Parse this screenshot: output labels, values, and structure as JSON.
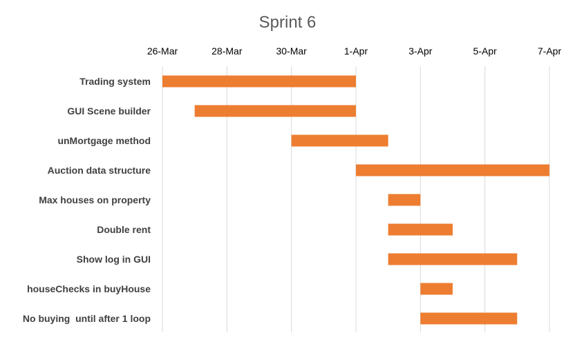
{
  "chart_data": {
    "type": "bar",
    "orientation": "horizontal-gantt",
    "title": "Sprint 6",
    "xlabel": "",
    "ylabel": "",
    "x_axis_position": "top",
    "grid": true,
    "legend": "none",
    "bar_color": "#ED7D31",
    "xlim": [
      "2020-03-26",
      "2020-04-07"
    ],
    "x_ticks": [
      {
        "date": "2020-03-26",
        "label": "26-Mar"
      },
      {
        "date": "2020-03-28",
        "label": "28-Mar"
      },
      {
        "date": "2020-03-30",
        "label": "30-Mar"
      },
      {
        "date": "2020-04-01",
        "label": "1-Apr"
      },
      {
        "date": "2020-04-03",
        "label": "3-Apr"
      },
      {
        "date": "2020-04-05",
        "label": "5-Apr"
      },
      {
        "date": "2020-04-07",
        "label": "7-Apr"
      }
    ],
    "tasks": [
      {
        "label": "Trading system",
        "start": "2020-03-26",
        "end": "2020-04-01"
      },
      {
        "label": "GUI Scene builder",
        "start": "2020-03-27",
        "end": "2020-04-01"
      },
      {
        "label": "unMortgage method",
        "start": "2020-03-30",
        "end": "2020-04-02"
      },
      {
        "label": "Auction data structure",
        "start": "2020-04-01",
        "end": "2020-04-07"
      },
      {
        "label": "Max houses on property",
        "start": "2020-04-02",
        "end": "2020-04-03"
      },
      {
        "label": "Double rent",
        "start": "2020-04-02",
        "end": "2020-04-04"
      },
      {
        "label": "Show log in GUI",
        "start": "2020-04-02",
        "end": "2020-04-06"
      },
      {
        "label": "houseChecks in buyHouse",
        "start": "2020-04-03",
        "end": "2020-04-04"
      },
      {
        "label": "No buying  until after 1 loop",
        "start": "2020-04-03",
        "end": "2020-04-06"
      }
    ]
  }
}
